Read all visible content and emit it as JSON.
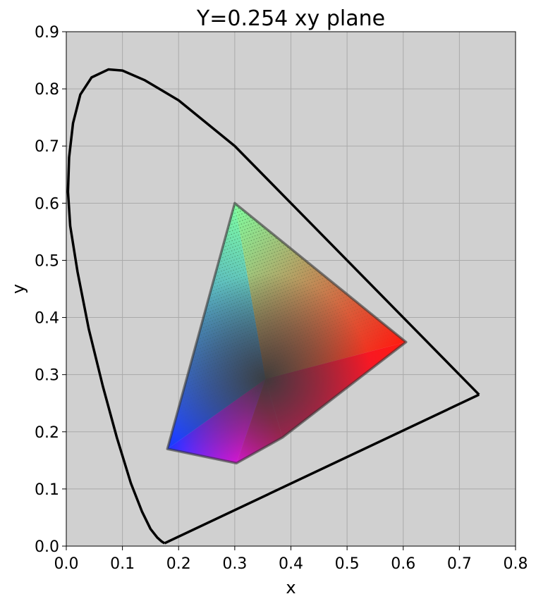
{
  "chart_data": {
    "type": "scatter",
    "title": "Y=0.254 xy plane",
    "xlabel": "x",
    "ylabel": "y",
    "xlim": [
      0.0,
      0.8
    ],
    "ylim": [
      0.0,
      0.9
    ],
    "xticks": [
      "0.0",
      "0.1",
      "0.2",
      "0.3",
      "0.4",
      "0.5",
      "0.6",
      "0.7",
      "0.8"
    ],
    "yticks": [
      "0.0",
      "0.1",
      "0.2",
      "0.3",
      "0.4",
      "0.5",
      "0.6",
      "0.7",
      "0.8",
      "0.9"
    ],
    "grid": true,
    "background_color": "#d0d0d0",
    "spectral_locus": [
      [
        0.175,
        0.005
      ],
      [
        0.17,
        0.008
      ],
      [
        0.162,
        0.015
      ],
      [
        0.15,
        0.03
      ],
      [
        0.135,
        0.06
      ],
      [
        0.115,
        0.11
      ],
      [
        0.09,
        0.19
      ],
      [
        0.065,
        0.28
      ],
      [
        0.04,
        0.38
      ],
      [
        0.02,
        0.48
      ],
      [
        0.007,
        0.56
      ],
      [
        0.003,
        0.62
      ],
      [
        0.005,
        0.68
      ],
      [
        0.012,
        0.74
      ],
      [
        0.025,
        0.79
      ],
      [
        0.045,
        0.82
      ],
      [
        0.075,
        0.834
      ],
      [
        0.1,
        0.832
      ],
      [
        0.14,
        0.815
      ],
      [
        0.2,
        0.78
      ],
      [
        0.3,
        0.7
      ],
      [
        0.4,
        0.6
      ],
      [
        0.5,
        0.5
      ],
      [
        0.6,
        0.4
      ],
      [
        0.7,
        0.3
      ],
      [
        0.735,
        0.265
      ]
    ],
    "purple_line": [
      [
        0.735,
        0.265
      ],
      [
        0.175,
        0.005
      ]
    ],
    "gamut_polygon": [
      [
        0.3,
        0.6
      ],
      [
        0.605,
        0.357
      ],
      [
        0.385,
        0.19
      ],
      [
        0.303,
        0.145
      ],
      [
        0.18,
        0.17
      ]
    ],
    "gamut_vertex_colors": [
      "#7fffa0",
      "#ff1a10",
      "#e0145c",
      "#ee10ee",
      "#1a36ff"
    ]
  }
}
